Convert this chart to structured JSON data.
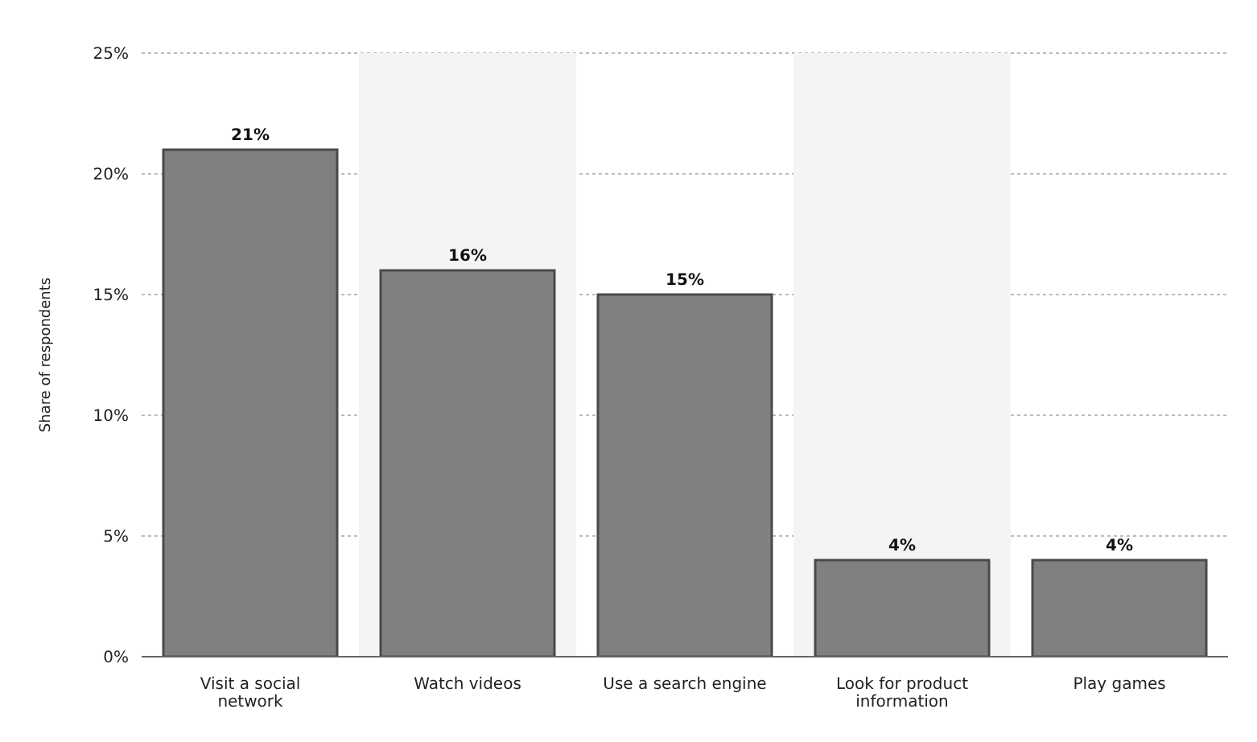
{
  "chart_data": {
    "type": "bar",
    "ylabel": "Share of respondents",
    "categories": [
      "Visit a social network",
      "Watch videos",
      "Use a search engine",
      "Look for product information",
      "Play games"
    ],
    "values": [
      21,
      16,
      15,
      4,
      4
    ],
    "color": "#808080",
    "value_labels": [
      "21%",
      "16%",
      "15%",
      "4%",
      "4%"
    ],
    "ylim": [
      0,
      25
    ],
    "yticks": [
      {
        "value": 0,
        "label": "0%"
      },
      {
        "value": 5,
        "label": "5%"
      },
      {
        "value": 10,
        "label": "10%"
      },
      {
        "value": 15,
        "label": "15%"
      },
      {
        "value": 20,
        "label": "20%"
      },
      {
        "value": 25,
        "label": "25%"
      }
    ],
    "grid": "y",
    "bands": [
      {
        "axis": "x",
        "from": "Watch videos",
        "to": "Watch videos",
        "color": "#f4f4f4"
      },
      {
        "axis": "x",
        "from": "Look for product information",
        "to": "Look for product information",
        "color": "#f4f4f4"
      }
    ]
  }
}
